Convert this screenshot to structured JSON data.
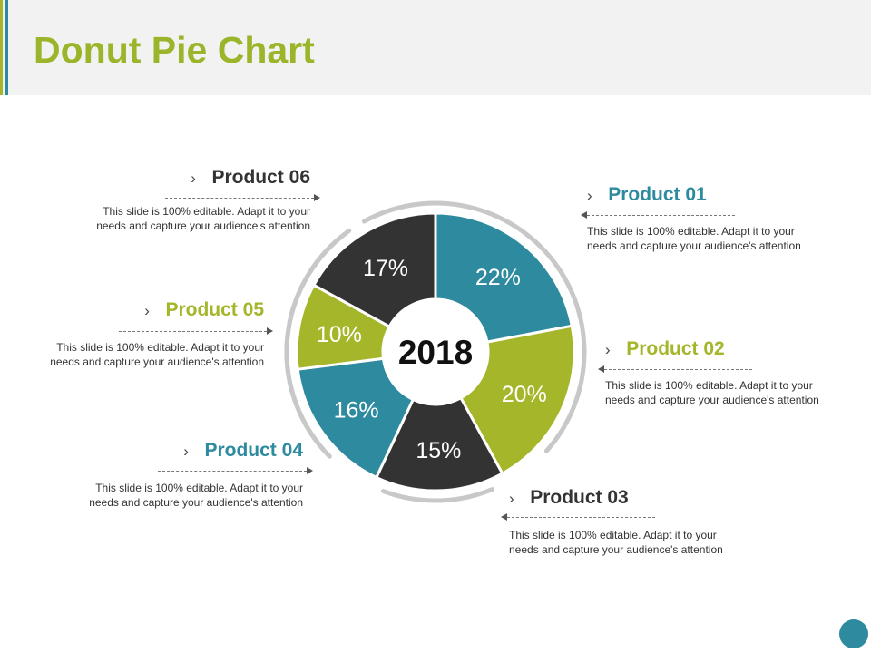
{
  "title": "Donut Pie Chart",
  "colors": {
    "green": "#a5b62a",
    "teal": "#2e8a9e",
    "dark": "#333333",
    "ring": "#c8c8c8"
  },
  "chart_data": {
    "type": "pie",
    "center_label": "2018",
    "slices": [
      {
        "name": "Product 01",
        "value": 22,
        "label": "22%",
        "color": "#2e8a9e"
      },
      {
        "name": "Product 02",
        "value": 20,
        "label": "20%",
        "color": "#a5b62a"
      },
      {
        "name": "Product 03",
        "value": 15,
        "label": "15%",
        "color": "#333333"
      },
      {
        "name": "Product 04",
        "value": 16,
        "label": "16%",
        "color": "#2e8a9e"
      },
      {
        "name": "Product 05",
        "value": 10,
        "label": "10%",
        "color": "#a5b62a"
      },
      {
        "name": "Product 06",
        "value": 17,
        "label": "17%",
        "color": "#333333"
      }
    ]
  },
  "products": [
    {
      "name": "Product 01",
      "chevron": "›",
      "color": "#2e8a9e",
      "desc": "This slide is 100% editable. Adapt it to your needs and capture your audience's attention"
    },
    {
      "name": "Product 02",
      "chevron": "›",
      "color": "#a5b62a",
      "desc": "This slide is 100% editable. Adapt it to your needs and capture your audience's attention"
    },
    {
      "name": "Product 03",
      "chevron": "›",
      "color": "#333333",
      "desc": "This slide is 100% editable. Adapt it to your needs and capture your audience's attention"
    },
    {
      "name": "Product 04",
      "chevron": "›",
      "color": "#2e8a9e",
      "desc": "This slide is 100% editable. Adapt it to your needs and capture your audience's attention"
    },
    {
      "name": "Product 05",
      "chevron": "›",
      "color": "#a5b62a",
      "desc": "This slide is 100% editable. Adapt it to your needs and capture your audience's attention"
    },
    {
      "name": "Product 06",
      "chevron": "›",
      "color": "#333333",
      "desc": "This slide is 100% editable. Adapt it to your needs and capture your audience's attention"
    }
  ]
}
